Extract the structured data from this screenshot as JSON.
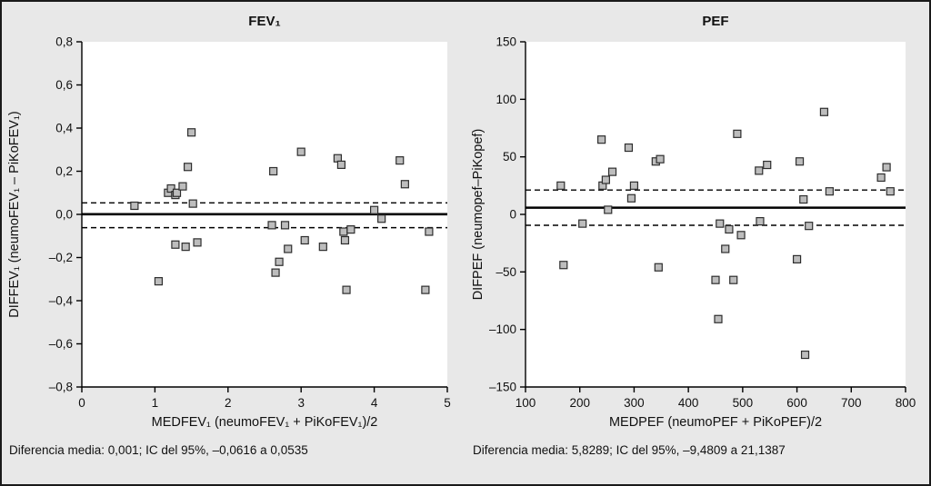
{
  "colors": {
    "background": "#e8e8e8",
    "plot_bg": "#ffffff",
    "marker_fill": "#bdbdbd",
    "marker_stroke": "#2e2e2e",
    "line": "#000000",
    "text": "#111111"
  },
  "chart_data": [
    {
      "type": "scatter",
      "title": "FEV₁",
      "xlabel": "MEDFEV₁ (neumoFEV₁ + PiKoFEV₁)/2",
      "ylabel": "DIFFEV₁ (neumoFEV₁ – PiKoFEV₁)",
      "xlim": [
        0,
        5
      ],
      "ylim": [
        -0.8,
        0.8
      ],
      "xticks": [
        0,
        1,
        2,
        3,
        4,
        5
      ],
      "xtick_labels": [
        "0",
        "1",
        "2",
        "3",
        "4",
        "5"
      ],
      "yticks": [
        0.8,
        0.6,
        0.4,
        0.2,
        0.0,
        -0.2,
        -0.4,
        -0.6,
        -0.8
      ],
      "ytick_labels": [
        "0,8",
        "0,6",
        "0,4",
        "0,2",
        "0,0",
        "–0,2",
        "–0,4",
        "–0,6",
        "–0,8"
      ],
      "mean_line": 0.001,
      "upper_line": 0.0535,
      "lower_line": -0.0616,
      "caption": "Diferencia media: 0,001; IC del 95%, –0,0616 a 0,0535",
      "legend": "none",
      "grid": false,
      "points": [
        [
          0.72,
          0.04
        ],
        [
          1.05,
          -0.31
        ],
        [
          1.18,
          0.1
        ],
        [
          1.22,
          0.12
        ],
        [
          1.28,
          0.09
        ],
        [
          1.3,
          0.1
        ],
        [
          1.28,
          -0.14
        ],
        [
          1.38,
          0.13
        ],
        [
          1.42,
          -0.15
        ],
        [
          1.45,
          0.22
        ],
        [
          1.5,
          0.38
        ],
        [
          1.52,
          0.05
        ],
        [
          1.58,
          -0.13
        ],
        [
          2.6,
          -0.05
        ],
        [
          2.62,
          0.2
        ],
        [
          2.65,
          -0.27
        ],
        [
          2.7,
          -0.22
        ],
        [
          2.78,
          -0.05
        ],
        [
          2.82,
          -0.16
        ],
        [
          3.0,
          0.29
        ],
        [
          3.05,
          -0.12
        ],
        [
          3.3,
          -0.15
        ],
        [
          3.5,
          0.26
        ],
        [
          3.55,
          0.23
        ],
        [
          3.58,
          -0.08
        ],
        [
          3.6,
          -0.12
        ],
        [
          3.62,
          -0.35
        ],
        [
          3.68,
          -0.07
        ],
        [
          4.0,
          0.02
        ],
        [
          4.1,
          -0.02
        ],
        [
          4.35,
          0.25
        ],
        [
          4.42,
          0.14
        ],
        [
          4.7,
          -0.35
        ],
        [
          4.75,
          -0.08
        ]
      ]
    },
    {
      "type": "scatter",
      "title": "PEF",
      "xlabel": "MEDPEF (neumoPEF + PiKoPEF)/2",
      "ylabel": "DIFPEF (neumopef–PiKopef)",
      "xlim": [
        100,
        800
      ],
      "ylim": [
        -150,
        150
      ],
      "xticks": [
        100,
        200,
        300,
        400,
        500,
        600,
        700,
        800
      ],
      "xtick_labels": [
        "100",
        "200",
        "300",
        "400",
        "500",
        "600",
        "700",
        "800"
      ],
      "yticks": [
        150,
        100,
        50,
        0,
        -50,
        -100,
        -150
      ],
      "ytick_labels": [
        "150",
        "100",
        "50",
        "0",
        "–50",
        "–100",
        "–150"
      ],
      "mean_line": 5.8289,
      "upper_line": 21.1387,
      "lower_line": -9.4809,
      "caption": "Diferencia media: 5,8289; IC del 95%, –9,4809 a 21,1387",
      "legend": "none",
      "grid": false,
      "points": [
        [
          165,
          25
        ],
        [
          170,
          -44
        ],
        [
          205,
          -8
        ],
        [
          240,
          65
        ],
        [
          242,
          25
        ],
        [
          248,
          30
        ],
        [
          252,
          4
        ],
        [
          260,
          37
        ],
        [
          290,
          58
        ],
        [
          295,
          14
        ],
        [
          300,
          25
        ],
        [
          340,
          46
        ],
        [
          348,
          48
        ],
        [
          345,
          -46
        ],
        [
          450,
          -57
        ],
        [
          455,
          -91
        ],
        [
          458,
          -8
        ],
        [
          468,
          -30
        ],
        [
          475,
          -13
        ],
        [
          483,
          -57
        ],
        [
          490,
          70
        ],
        [
          497,
          -18
        ],
        [
          530,
          38
        ],
        [
          532,
          -6
        ],
        [
          545,
          43
        ],
        [
          600,
          -39
        ],
        [
          605,
          46
        ],
        [
          612,
          13
        ],
        [
          615,
          -122
        ],
        [
          622,
          -10
        ],
        [
          650,
          89
        ],
        [
          660,
          20
        ],
        [
          755,
          32
        ],
        [
          765,
          41
        ],
        [
          772,
          20
        ]
      ]
    }
  ]
}
